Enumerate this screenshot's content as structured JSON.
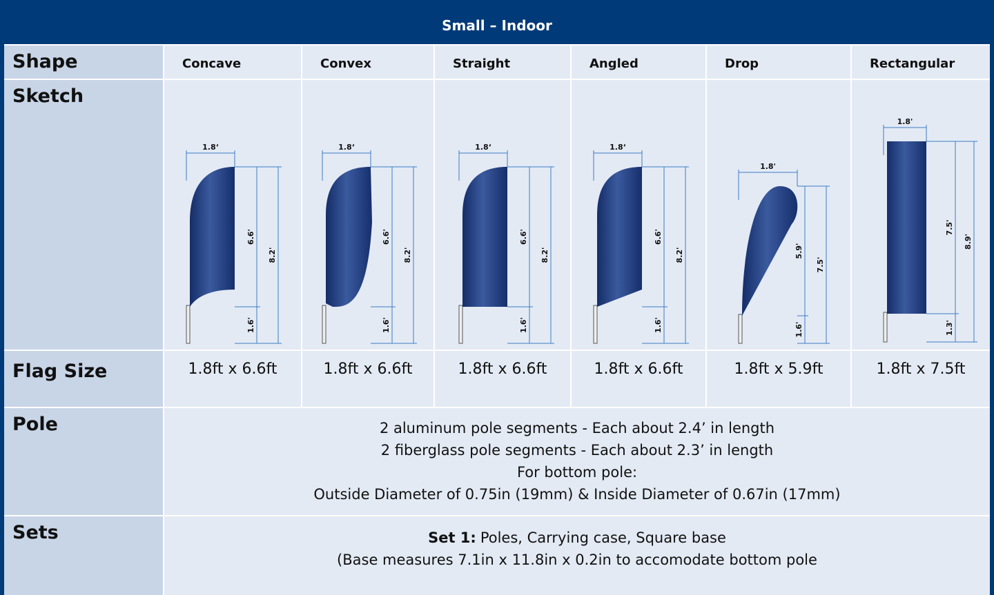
{
  "header": {
    "title": "Small – Indoor"
  },
  "shape": {
    "label": "Shape",
    "values": [
      "Concave",
      "Convex",
      "Straight",
      "Angled",
      "Drop",
      "Rectangular"
    ]
  },
  "sketch": {
    "label": "Sketch",
    "items": [
      {
        "width": "1.8‘",
        "flag_height": "6.6'",
        "pole_height": "1.6'",
        "total_height": "8.2'"
      },
      {
        "width": "1.8‘",
        "flag_height": "6.6'",
        "pole_height": "1.6'",
        "total_height": "8.2'"
      },
      {
        "width": "1.8‘",
        "flag_height": "6.6'",
        "pole_height": "1.6'",
        "total_height": "8.2'"
      },
      {
        "width": "1.8‘",
        "flag_height": "6.6'",
        "pole_height": "1.6'",
        "total_height": "8.2'"
      },
      {
        "width": "1.8'",
        "flag_height": "5.9'",
        "pole_height": "1.6'",
        "total_height": "7.5'"
      },
      {
        "width": "1.8'",
        "flag_height": "7.5'",
        "pole_height": "1.3'",
        "total_height": "8.9'"
      }
    ]
  },
  "flag_size": {
    "label": "Flag Size",
    "values": [
      "1.8ft x 6.6ft",
      "1.8ft x 6.6ft",
      "1.8ft x 6.6ft",
      "1.8ft x 6.6ft",
      "1.8ft x 5.9ft",
      "1.8ft x 7.5ft"
    ]
  },
  "pole": {
    "label": "Pole",
    "lines": [
      "2 aluminum pole segments - Each about 2.4’ in length",
      "2 fiberglass pole segments - Each about 2.3’ in length",
      "For bottom pole:",
      "Outside Diameter of 0.75in (19mm) & Inside Diameter of 0.67in (17mm)"
    ]
  },
  "sets": {
    "label": "Sets",
    "set_name": "Set 1:",
    "set_items": "Poles, Carrying case, Square base",
    "note": "(Base measures 7.1in x 11.8in x 0.2in to accomodate bottom pole"
  }
}
